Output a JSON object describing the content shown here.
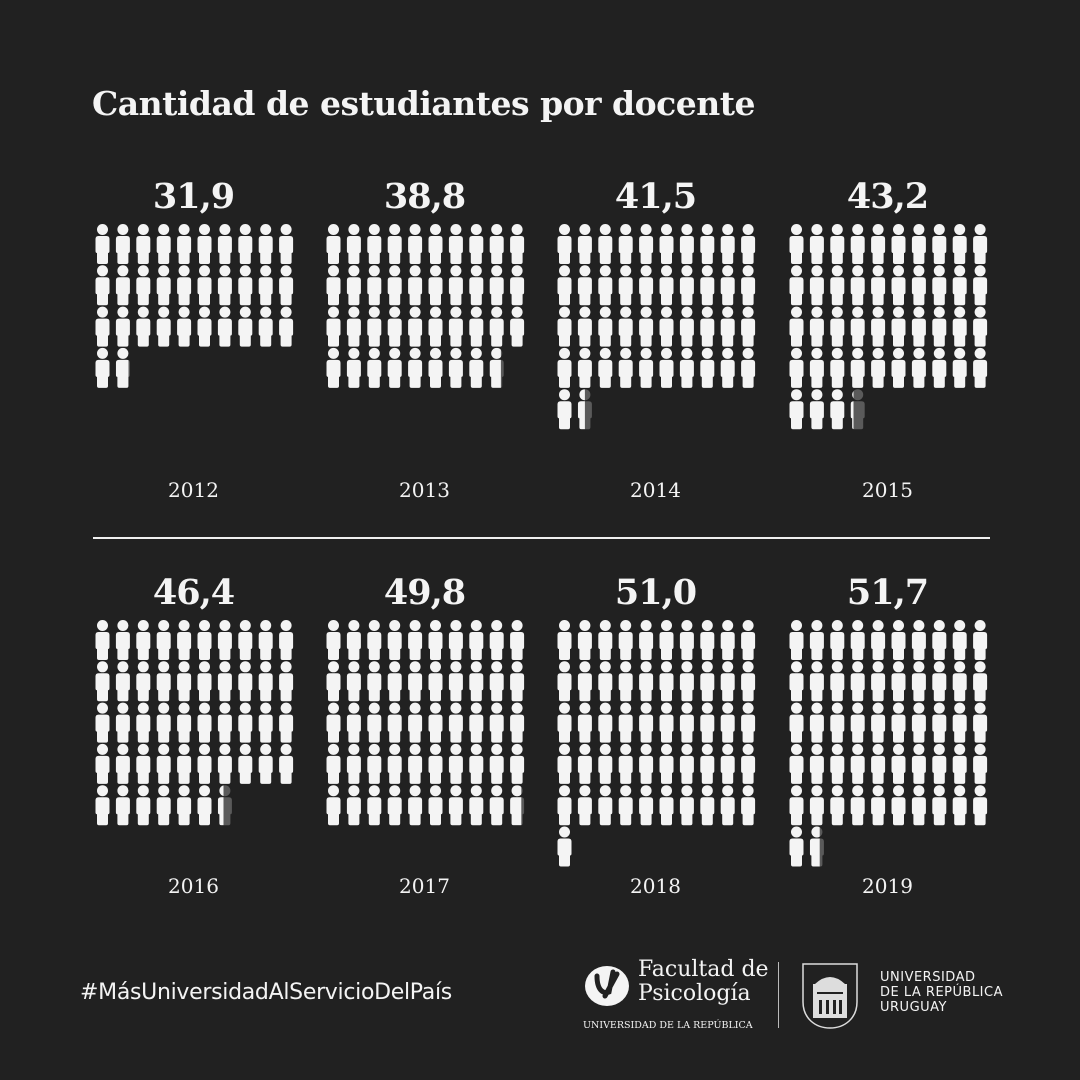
{
  "title": "Cantidad de estudiantes por docente",
  "chart_data": {
    "type": "pictogram",
    "title": "Cantidad de estudiantes por docente",
    "unit_per_icon": 1,
    "icons_per_row": 10,
    "icon": "person-icon",
    "categories": [
      "2012",
      "2013",
      "2014",
      "2015",
      "2016",
      "2017",
      "2018",
      "2019"
    ],
    "values": [
      31.9,
      38.8,
      41.5,
      43.2,
      46.4,
      49.8,
      51.0,
      51.7
    ],
    "value_labels": [
      "31,9",
      "38,8",
      "41,5",
      "43,2",
      "46,4",
      "49,8",
      "51,0",
      "51,7"
    ],
    "colors": {
      "filled": "#f4f4f4",
      "remainder": "#5a5a5a",
      "background": "#212121"
    }
  },
  "footer": {
    "hashtag": "#MásUniversidadAlServicioDelPaís",
    "faculty_line1": "Facultad de",
    "faculty_line2": "Psicología",
    "faculty_sub": "UNIVERSIDAD DE LA REPÚBLICA",
    "udelar_line1": "UNIVERSIDAD",
    "udelar_line2": "DE LA REPÚBLICA",
    "udelar_line3": "URUGUAY"
  }
}
